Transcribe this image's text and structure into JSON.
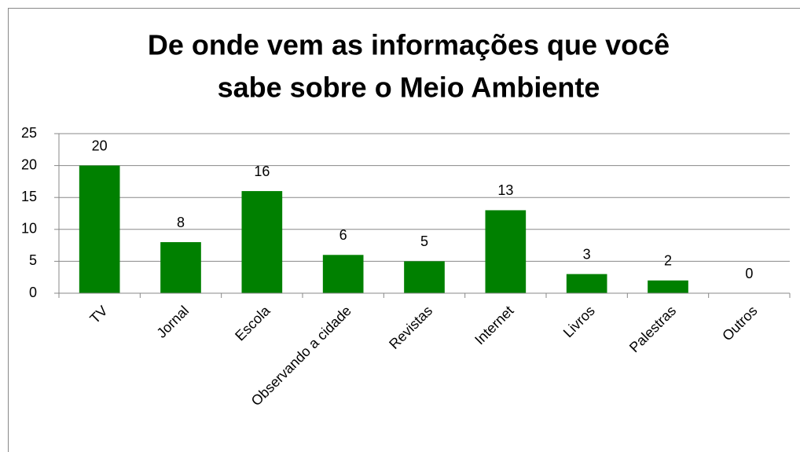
{
  "chart_data": {
    "type": "bar",
    "title": [
      "De onde vem as informações que você",
      "sabe sobre o Meio Ambiente"
    ],
    "categories": [
      "TV",
      "Jornal",
      "Escola",
      "Observando a cidade",
      "Revistas",
      "Internet",
      "Livros",
      "Palestras",
      "Outros"
    ],
    "values": [
      20,
      8,
      16,
      6,
      5,
      13,
      3,
      2,
      0
    ],
    "color": "#008000",
    "ylim": [
      0,
      25
    ],
    "yticks": [
      0,
      5,
      10,
      15,
      20,
      25
    ],
    "grid": true
  }
}
